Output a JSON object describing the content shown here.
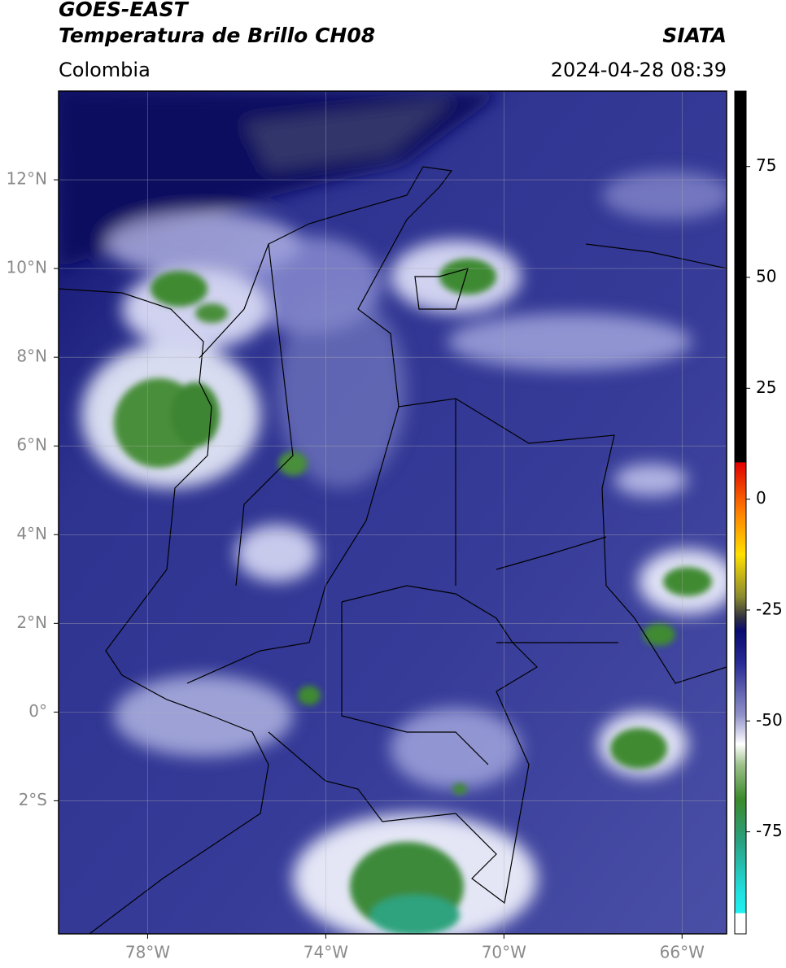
{
  "header": {
    "satellite": "GOES-EAST",
    "product": "Temperatura de Brillo CH08",
    "institution": "SIATA",
    "region": "Colombia",
    "timestamp": "2024-04-28 08:39"
  },
  "map": {
    "lonlim": [
      -80,
      -65
    ],
    "latlim": [
      -5,
      14
    ],
    "lonticks": [
      {
        "value": -78,
        "label": "78°W"
      },
      {
        "value": -74,
        "label": "74°W"
      },
      {
        "value": -70,
        "label": "70°W"
      },
      {
        "value": -66,
        "label": "66°W"
      }
    ],
    "latticks": [
      {
        "value": 12,
        "label": "12°N"
      },
      {
        "value": 10,
        "label": "10°N"
      },
      {
        "value": 8,
        "label": "8°N"
      },
      {
        "value": 6,
        "label": "6°N"
      },
      {
        "value": 4,
        "label": "4°N"
      },
      {
        "value": 2,
        "label": "2°N"
      },
      {
        "value": 0,
        "label": "0°"
      },
      {
        "value": -2,
        "label": "2°S"
      }
    ],
    "grid": true
  },
  "colorbar": {
    "lim": [
      -98,
      92
    ],
    "ticks": [
      75,
      50,
      25,
      0,
      -25,
      -50,
      -75
    ]
  }
}
